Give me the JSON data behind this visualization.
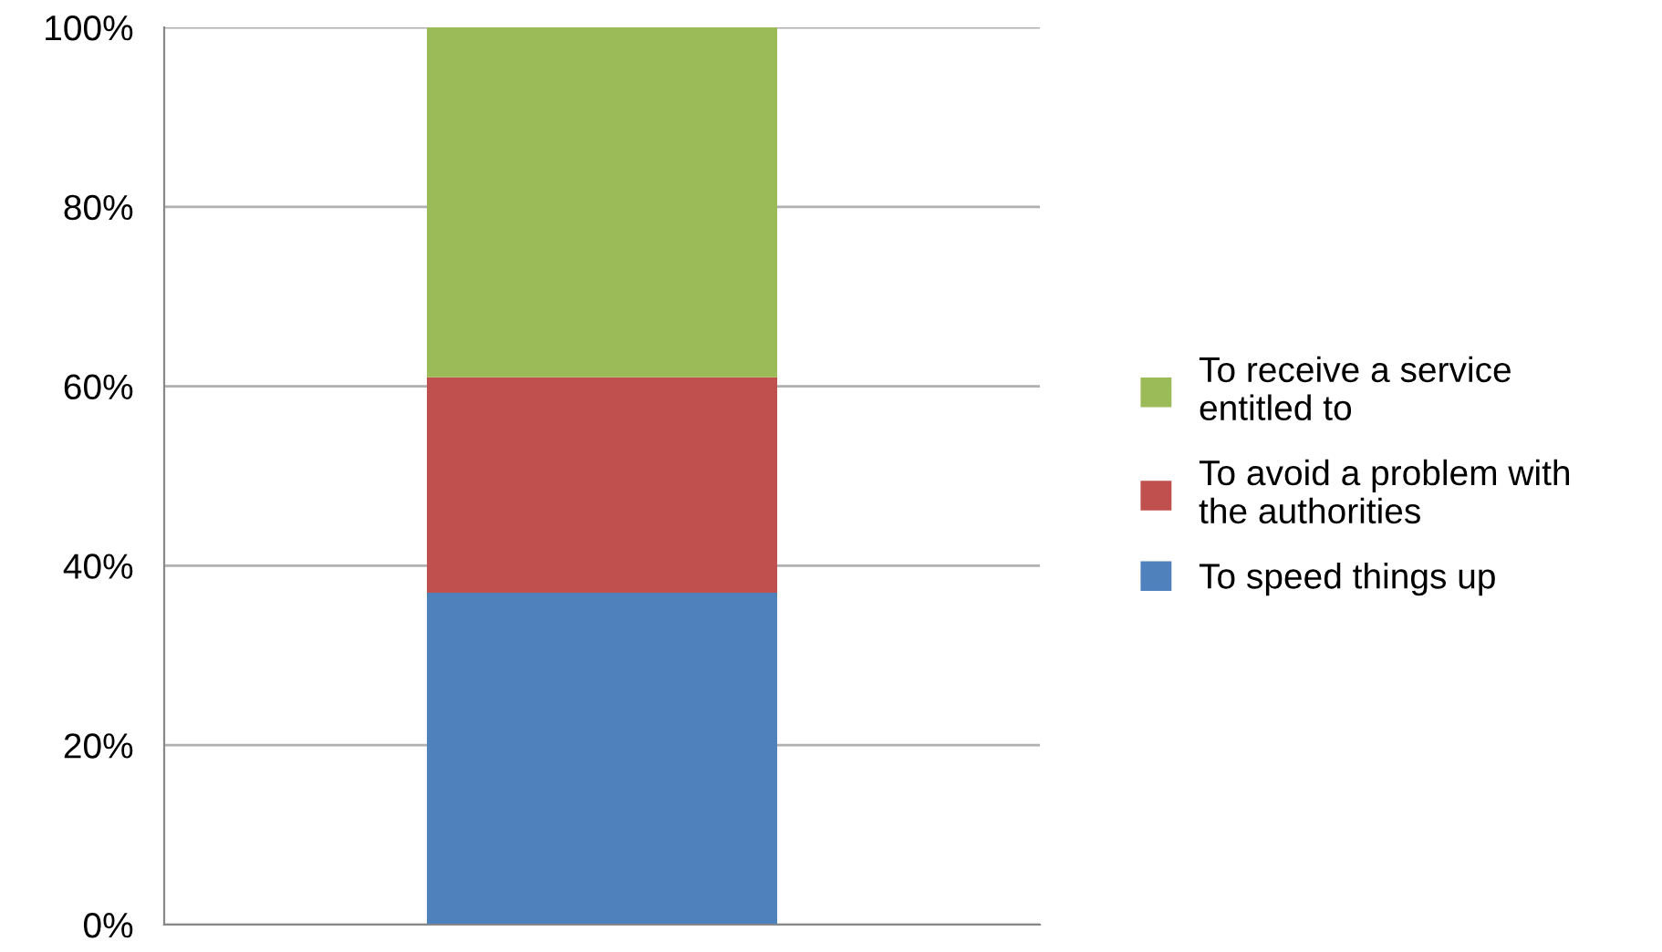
{
  "chart_data": {
    "type": "bar",
    "stacked": true,
    "categories": [
      null
    ],
    "series": [
      {
        "name": "To speed things up",
        "color": "#4f81bd",
        "values": [
          37
        ]
      },
      {
        "name": "To avoid a problem with the authorities",
        "color": "#c0504d",
        "values": [
          24
        ]
      },
      {
        "name": "To receive a service entitled to",
        "color": "#9bbb59",
        "values": [
          39
        ]
      }
    ],
    "ylim": [
      0,
      100
    ],
    "yticks": [
      {
        "value": 0,
        "label": "0%"
      },
      {
        "value": 20,
        "label": "20%"
      },
      {
        "value": 40,
        "label": "40%"
      },
      {
        "value": 60,
        "label": "60%"
      },
      {
        "value": 80,
        "label": "80%"
      },
      {
        "value": 100,
        "label": "100%"
      }
    ],
    "grid": "y",
    "legend": "right"
  }
}
